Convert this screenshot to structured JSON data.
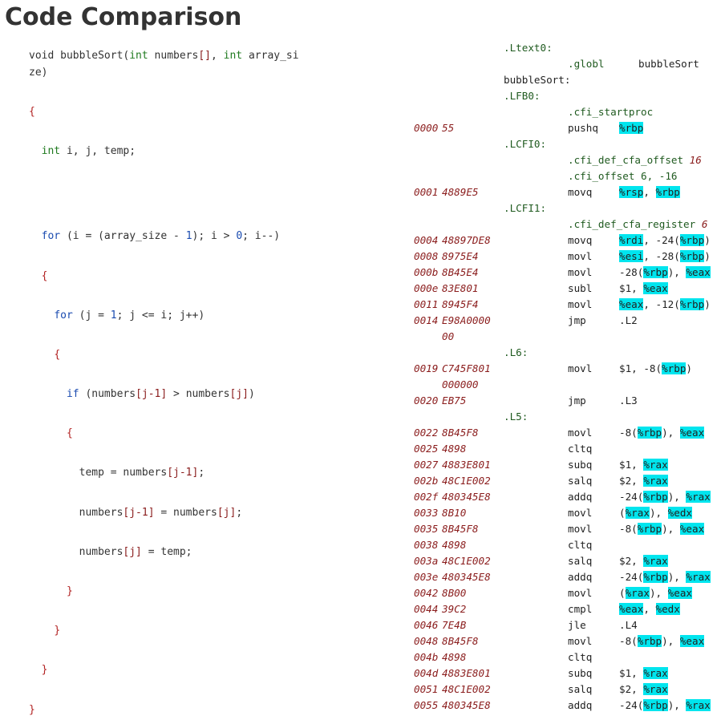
{
  "page": {
    "title": "Code Comparison"
  },
  "source_lines": [
    {
      "kind": "code",
      "segs": [
        [
          "plain",
          "void bubbleSort("
        ],
        [
          "typ",
          "int"
        ],
        [
          "plain",
          " numbers"
        ],
        [
          "ref",
          "[]"
        ],
        [
          "plain",
          ", "
        ],
        [
          "typ",
          "int"
        ],
        [
          "plain",
          " array_si"
        ]
      ]
    },
    {
      "kind": "code",
      "segs": [
        [
          "plain",
          "ze)"
        ]
      ]
    },
    {
      "kind": "blank",
      "segs": []
    },
    {
      "kind": "code",
      "segs": [
        [
          "punc",
          "{"
        ]
      ]
    },
    {
      "kind": "blank",
      "segs": []
    },
    {
      "kind": "code",
      "segs": [
        [
          "plain",
          "  "
        ],
        [
          "typ",
          "int"
        ],
        [
          "plain",
          " i, j, temp;"
        ]
      ]
    },
    {
      "kind": "blank",
      "segs": []
    },
    {
      "kind": "blank",
      "segs": []
    },
    {
      "kind": "blank",
      "segs": []
    },
    {
      "kind": "code",
      "segs": [
        [
          "plain",
          "  "
        ],
        [
          "kw",
          "for"
        ],
        [
          "plain",
          " (i = (array_size - "
        ],
        [
          "kw",
          "1"
        ],
        [
          "plain",
          "); i > "
        ],
        [
          "kw",
          "0"
        ],
        [
          "plain",
          "; i--)"
        ]
      ]
    },
    {
      "kind": "blank",
      "segs": []
    },
    {
      "kind": "code",
      "segs": [
        [
          "plain",
          "  "
        ],
        [
          "punc",
          "{"
        ]
      ]
    },
    {
      "kind": "blank",
      "segs": []
    },
    {
      "kind": "code",
      "segs": [
        [
          "plain",
          "    "
        ],
        [
          "kw",
          "for"
        ],
        [
          "plain",
          " (j = "
        ],
        [
          "kw",
          "1"
        ],
        [
          "plain",
          "; j <= i; j++)"
        ]
      ]
    },
    {
      "kind": "blank",
      "segs": []
    },
    {
      "kind": "code",
      "segs": [
        [
          "plain",
          "    "
        ],
        [
          "punc",
          "{"
        ]
      ]
    },
    {
      "kind": "blank",
      "segs": []
    },
    {
      "kind": "code",
      "segs": [
        [
          "plain",
          "      "
        ],
        [
          "kw",
          "if"
        ],
        [
          "plain",
          " (numbers"
        ],
        [
          "ref",
          "[j-1]"
        ],
        [
          "plain",
          " > numbers"
        ],
        [
          "ref",
          "[j]"
        ],
        [
          "plain",
          ")"
        ]
      ]
    },
    {
      "kind": "blank",
      "segs": []
    },
    {
      "kind": "code",
      "segs": [
        [
          "plain",
          "      "
        ],
        [
          "punc",
          "{"
        ]
      ]
    },
    {
      "kind": "blank",
      "segs": []
    },
    {
      "kind": "code",
      "segs": [
        [
          "plain",
          "        temp = numbers"
        ],
        [
          "ref",
          "[j-1]"
        ],
        [
          "plain",
          ";"
        ]
      ]
    },
    {
      "kind": "blank",
      "segs": []
    },
    {
      "kind": "code",
      "segs": [
        [
          "plain",
          "        numbers"
        ],
        [
          "ref",
          "[j-1]"
        ],
        [
          "plain",
          " = numbers"
        ],
        [
          "ref",
          "[j]"
        ],
        [
          "plain",
          ";"
        ]
      ]
    },
    {
      "kind": "blank",
      "segs": []
    },
    {
      "kind": "code",
      "segs": [
        [
          "plain",
          "        numbers"
        ],
        [
          "ref",
          "[j]"
        ],
        [
          "plain",
          " = temp;"
        ]
      ]
    },
    {
      "kind": "blank",
      "segs": []
    },
    {
      "kind": "code",
      "segs": [
        [
          "plain",
          "      "
        ],
        [
          "punc",
          "}"
        ]
      ]
    },
    {
      "kind": "blank",
      "segs": []
    },
    {
      "kind": "code",
      "segs": [
        [
          "plain",
          "    "
        ],
        [
          "punc",
          "}"
        ]
      ]
    },
    {
      "kind": "blank",
      "segs": []
    },
    {
      "kind": "code",
      "segs": [
        [
          "plain",
          "  "
        ],
        [
          "punc",
          "}"
        ]
      ]
    },
    {
      "kind": "blank",
      "segs": []
    },
    {
      "kind": "code",
      "segs": [
        [
          "punc",
          "}"
        ]
      ]
    }
  ],
  "asm_lines": [
    {
      "label": ".Ltext0:"
    },
    {
      "instr": ".globl",
      "dir": true,
      "ops": [
        [
          "plain",
          "bubbleSort"
        ]
      ],
      "wide": true
    },
    {
      "label": "bubbleSort:",
      "plain": true
    },
    {
      "label": ".LFB0:"
    },
    {
      "instr": ".cfi_startproc",
      "dir": true
    },
    {
      "off": "0000",
      "hex": "55",
      "instr": "pushq",
      "ops": [
        [
          "reg",
          "%rbp"
        ]
      ]
    },
    {
      "label": ".LCFI0:"
    },
    {
      "instr": ".cfi_def_cfa_offset",
      "dir": true,
      "trail": [
        [
          "num",
          "16"
        ]
      ]
    },
    {
      "instr": ".cfi_offset",
      "dir": true,
      "trail": [
        [
          "plain",
          "6, -16"
        ]
      ]
    },
    {
      "off": "0001",
      "hex": "4889E5",
      "instr": "movq",
      "ops": [
        [
          "reg",
          "%rsp"
        ],
        [
          "plain",
          ", "
        ],
        [
          "reg",
          "%rbp"
        ]
      ]
    },
    {
      "label": ".LCFI1:"
    },
    {
      "instr": ".cfi_def_cfa_register",
      "dir": true,
      "trail": [
        [
          "num",
          "6"
        ]
      ]
    },
    {
      "off": "0004",
      "hex": "48897DE8",
      "instr": "movq",
      "ops": [
        [
          "reg",
          "%rdi"
        ],
        [
          "plain",
          ", -24("
        ],
        [
          "reg",
          "%rbp"
        ],
        [
          "plain",
          ")"
        ]
      ]
    },
    {
      "off": "0008",
      "hex": "8975E4",
      "instr": "movl",
      "ops": [
        [
          "reg",
          "%esi"
        ],
        [
          "plain",
          ", -28("
        ],
        [
          "reg",
          "%rbp"
        ],
        [
          "plain",
          ")"
        ]
      ]
    },
    {
      "off": "000b",
      "hex": "8B45E4",
      "instr": "movl",
      "ops": [
        [
          "plain",
          "-28("
        ],
        [
          "reg",
          "%rbp"
        ],
        [
          "plain",
          "), "
        ],
        [
          "reg",
          "%eax"
        ]
      ]
    },
    {
      "off": "000e",
      "hex": "83E801",
      "instr": "subl",
      "ops": [
        [
          "plain",
          "$1, "
        ],
        [
          "reg",
          "%eax"
        ]
      ]
    },
    {
      "off": "0011",
      "hex": "8945F4",
      "instr": "movl",
      "ops": [
        [
          "reg",
          "%eax"
        ],
        [
          "plain",
          ", -12("
        ],
        [
          "reg",
          "%rbp"
        ],
        [
          "plain",
          ")"
        ]
      ]
    },
    {
      "off": "0014",
      "hex": "E98A0000",
      "instr": "jmp",
      "ops": [
        [
          "plain",
          ".L2"
        ]
      ]
    },
    {
      "hex": "00"
    },
    {
      "label": ".L6:"
    },
    {
      "off": "0019",
      "hex": "C745F801",
      "instr": "movl",
      "ops": [
        [
          "plain",
          "$1, -8("
        ],
        [
          "reg",
          "%rbp"
        ],
        [
          "plain",
          ")"
        ]
      ]
    },
    {
      "hex": "000000"
    },
    {
      "off": "0020",
      "hex": "EB75",
      "instr": "jmp",
      "ops": [
        [
          "plain",
          ".L3"
        ]
      ]
    },
    {
      "label": ".L5:"
    },
    {
      "off": "0022",
      "hex": "8B45F8",
      "instr": "movl",
      "ops": [
        [
          "plain",
          "-8("
        ],
        [
          "reg",
          "%rbp"
        ],
        [
          "plain",
          "), "
        ],
        [
          "reg",
          "%eax"
        ]
      ]
    },
    {
      "off": "0025",
      "hex": "4898",
      "instr": "cltq"
    },
    {
      "off": "0027",
      "hex": "4883E801",
      "instr": "subq",
      "ops": [
        [
          "plain",
          "$1, "
        ],
        [
          "reg",
          "%rax"
        ]
      ]
    },
    {
      "off": "002b",
      "hex": "48C1E002",
      "instr": "salq",
      "ops": [
        [
          "plain",
          "$2, "
        ],
        [
          "reg",
          "%rax"
        ]
      ]
    },
    {
      "off": "002f",
      "hex": "480345E8",
      "instr": "addq",
      "ops": [
        [
          "plain",
          "-24("
        ],
        [
          "reg",
          "%rbp"
        ],
        [
          "plain",
          "), "
        ],
        [
          "reg",
          "%rax"
        ]
      ]
    },
    {
      "off": "0033",
      "hex": "8B10",
      "instr": "movl",
      "ops": [
        [
          "plain",
          "("
        ],
        [
          "reg",
          "%rax"
        ],
        [
          "plain",
          "), "
        ],
        [
          "reg",
          "%edx"
        ]
      ]
    },
    {
      "off": "0035",
      "hex": "8B45F8",
      "instr": "movl",
      "ops": [
        [
          "plain",
          "-8("
        ],
        [
          "reg",
          "%rbp"
        ],
        [
          "plain",
          "), "
        ],
        [
          "reg",
          "%eax"
        ]
      ]
    },
    {
      "off": "0038",
      "hex": "4898",
      "instr": "cltq"
    },
    {
      "off": "003a",
      "hex": "48C1E002",
      "instr": "salq",
      "ops": [
        [
          "plain",
          "$2, "
        ],
        [
          "reg",
          "%rax"
        ]
      ]
    },
    {
      "off": "003e",
      "hex": "480345E8",
      "instr": "addq",
      "ops": [
        [
          "plain",
          "-24("
        ],
        [
          "reg",
          "%rbp"
        ],
        [
          "plain",
          "), "
        ],
        [
          "reg",
          "%rax"
        ]
      ]
    },
    {
      "off": "0042",
      "hex": "8B00",
      "instr": "movl",
      "ops": [
        [
          "plain",
          "("
        ],
        [
          "reg",
          "%rax"
        ],
        [
          "plain",
          "), "
        ],
        [
          "reg",
          "%eax"
        ]
      ]
    },
    {
      "off": "0044",
      "hex": "39C2",
      "instr": "cmpl",
      "ops": [
        [
          "reg",
          "%eax"
        ],
        [
          "plain",
          ", "
        ],
        [
          "reg",
          "%edx"
        ]
      ]
    },
    {
      "off": "0046",
      "hex": "7E4B",
      "instr": "jle",
      "ops": [
        [
          "plain",
          ".L4"
        ]
      ]
    },
    {
      "off": "0048",
      "hex": "8B45F8",
      "instr": "movl",
      "ops": [
        [
          "plain",
          "-8("
        ],
        [
          "reg",
          "%rbp"
        ],
        [
          "plain",
          "), "
        ],
        [
          "reg",
          "%eax"
        ]
      ]
    },
    {
      "off": "004b",
      "hex": "4898",
      "instr": "cltq"
    },
    {
      "off": "004d",
      "hex": "4883E801",
      "instr": "subq",
      "ops": [
        [
          "plain",
          "$1, "
        ],
        [
          "reg",
          "%rax"
        ]
      ]
    },
    {
      "off": "0051",
      "hex": "48C1E002",
      "instr": "salq",
      "ops": [
        [
          "plain",
          "$2, "
        ],
        [
          "reg",
          "%rax"
        ]
      ]
    },
    {
      "off": "0055",
      "hex": "480345E8",
      "instr": "addq",
      "ops": [
        [
          "plain",
          "-24("
        ],
        [
          "reg",
          "%rbp"
        ],
        [
          "plain",
          "), "
        ],
        [
          "reg",
          "%rax"
        ]
      ]
    }
  ]
}
